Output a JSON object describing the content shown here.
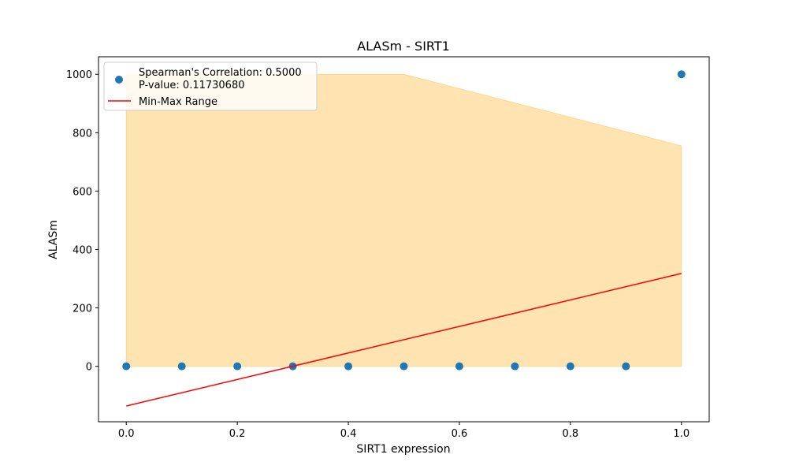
{
  "chart_data": {
    "type": "scatter",
    "title": "ALASm - SIRT1",
    "xlabel": "SIRT1 expression",
    "ylabel": "ALASm",
    "xlim": [
      -0.05,
      1.05
    ],
    "ylim": [
      -190,
      1060
    ],
    "xticks": [
      0.0,
      0.2,
      0.4,
      0.6,
      0.8,
      1.0
    ],
    "xtick_labels": [
      "0.0",
      "0.2",
      "0.4",
      "0.6",
      "0.8",
      "1.0"
    ],
    "yticks": [
      0,
      200,
      400,
      600,
      800,
      1000
    ],
    "ytick_labels": [
      "0",
      "200",
      "400",
      "600",
      "800",
      "1000"
    ],
    "grid": false,
    "legend_position": "top-left",
    "series": [
      {
        "name": "Spearman's Correlation: 0.5000\nP-value: 0.11730680",
        "kind": "scatter",
        "color": "#1f77b4",
        "x": [
          0.0,
          0.1,
          0.2,
          0.3,
          0.4,
          0.5,
          0.6,
          0.7,
          0.8,
          0.9,
          1.0
        ],
        "y": [
          0,
          0,
          0,
          0,
          0,
          0,
          0,
          0,
          0,
          0,
          1000
        ]
      },
      {
        "name": "Min-Max Range",
        "kind": "line",
        "color": "#ff0000",
        "x": [
          0.0,
          1.0
        ],
        "y": [
          -136,
          318
        ]
      }
    ],
    "band": {
      "color": "#ffa500",
      "opacity": 0.3,
      "x": [
        0.0,
        0.5,
        1.0
      ],
      "upper": [
        1000,
        1000,
        755
      ],
      "lower": [
        0,
        0,
        0
      ]
    },
    "legend": {
      "scatter_line1": "Spearman's Correlation: 0.5000",
      "scatter_line2": "P-value: 0.11730680",
      "line_label": "Min-Max Range"
    }
  }
}
